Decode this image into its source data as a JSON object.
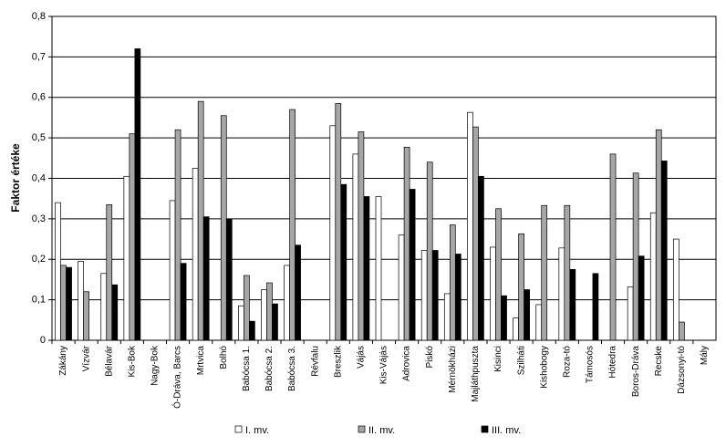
{
  "chart_data": {
    "type": "bar",
    "y_label": "Faktor értéke",
    "categories": [
      "Zákány",
      "Vízvár",
      "Bélavár",
      "Kis-Bok",
      "Nagy-Bok",
      "Ó-Dráva, Barcs",
      "Mrtvica",
      "Bolhó",
      "Babócsa 1.",
      "Babócsa 2.",
      "Babócsa 3.",
      "Révfalu",
      "Breszlik",
      "Vájás",
      "Kis-Vájás",
      "Adrovica",
      "Piskó",
      "Mérnökházi",
      "Majláthpuszta",
      "Kisinci",
      "Szilháti",
      "Kishobogy",
      "Roza-tó",
      "Támosós",
      "Hótedra",
      "Boros-Dráva",
      "Recske",
      "Dázsonyi-tó",
      "Mály"
    ],
    "series": [
      {
        "name": "I. mv.",
        "color": "#ffffff",
        "values": [
          0.34,
          0.195,
          0.165,
          0.405,
          null,
          0.345,
          0.425,
          null,
          0.085,
          0.125,
          0.185,
          null,
          0.53,
          0.46,
          0.355,
          0.26,
          0.222,
          0.115,
          0.563,
          0.23,
          0.055,
          0.088,
          0.228,
          null,
          null,
          0.132,
          0.315,
          0.25,
          null
        ]
      },
      {
        "name": "II. mv.",
        "color": "#a6a6a6",
        "values": [
          0.185,
          0.12,
          0.335,
          0.51,
          null,
          0.52,
          0.59,
          0.555,
          0.16,
          0.142,
          0.57,
          null,
          0.585,
          0.515,
          null,
          0.477,
          0.44,
          0.285,
          0.527,
          0.325,
          0.263,
          0.333,
          0.333,
          null,
          0.46,
          0.413,
          0.52,
          0.045,
          null
        ]
      },
      {
        "name": "III. mv.",
        "color": "#000000",
        "values": [
          0.18,
          null,
          0.137,
          0.72,
          null,
          0.19,
          0.305,
          0.3,
          0.047,
          0.09,
          0.235,
          null,
          0.385,
          0.355,
          null,
          0.373,
          0.222,
          0.213,
          0.405,
          0.11,
          0.125,
          null,
          0.175,
          0.165,
          null,
          0.208,
          0.443,
          null,
          null
        ]
      }
    ],
    "ylim": [
      0,
      0.8
    ],
    "yticks": [
      0,
      {
        "value": 0.1,
        "label": "0,1"
      },
      {
        "value": 0.2,
        "label": "0,2"
      },
      {
        "value": 0.3,
        "label": "0,3"
      },
      {
        "value": 0.4,
        "label": "0,4"
      },
      {
        "value": 0.5,
        "label": "0,5"
      },
      {
        "value": 0.6,
        "label": "0,6"
      },
      {
        "value": 0.7,
        "label": "0,7"
      },
      {
        "value": 0.8,
        "label": "0,8"
      }
    ],
    "grid": true
  }
}
